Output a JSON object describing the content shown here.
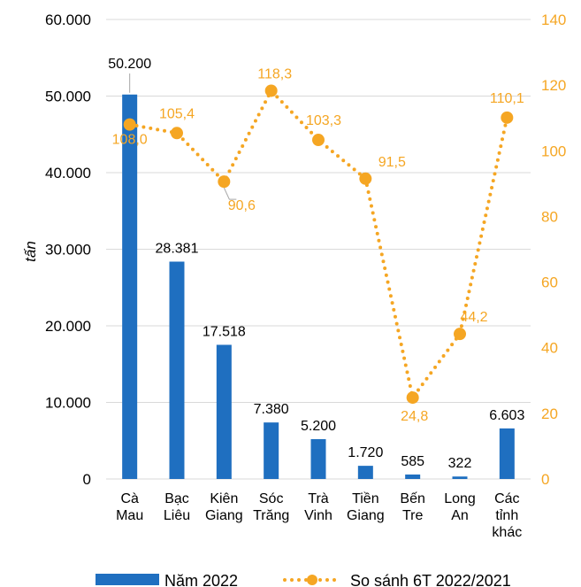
{
  "chart_data": {
    "type": "bar",
    "categories": [
      [
        "Cà",
        "Mau"
      ],
      [
        "Bạc",
        "Liêu"
      ],
      [
        "Kiên",
        "Giang"
      ],
      [
        "Sóc",
        "Trăng"
      ],
      [
        "Trà",
        "Vinh"
      ],
      [
        "Tiền",
        "Giang"
      ],
      [
        "Bến",
        "Tre"
      ],
      [
        "Long",
        "An"
      ],
      [
        "Các",
        "tỉnh",
        "khác"
      ]
    ],
    "series": [
      {
        "name": "Năm 2022",
        "type": "bar",
        "axis": "left",
        "color": "#1F6FC0",
        "values": [
          50200,
          28381,
          17518,
          7380,
          5200,
          1720,
          585,
          322,
          6603
        ],
        "labels": [
          "50.200",
          "28.381",
          "17.518",
          "7.380",
          "5.200",
          "1.720",
          "585",
          "322",
          "6.603"
        ]
      },
      {
        "name": "So sánh 6T 2022/2021",
        "type": "line",
        "style": "dotted",
        "axis": "right",
        "color": "#F5A623",
        "values": [
          108.0,
          105.4,
          90.6,
          118.3,
          103.3,
          91.5,
          24.8,
          44.2,
          110.1
        ],
        "labels": [
          "108,0",
          "105,4",
          "90,6",
          "118,3",
          "103,3",
          "91,5",
          "24,8",
          "44,2",
          "110,1"
        ]
      }
    ],
    "ylabel": "tấn",
    "ylim_left": [
      0,
      60000
    ],
    "yticks_left": [
      "0",
      "10.000",
      "20.000",
      "30.000",
      "40.000",
      "50.000",
      "60.000"
    ],
    "ylim_right": [
      0,
      140
    ],
    "yticks_right": [
      "0",
      "20",
      "40",
      "60",
      "80",
      "100",
      "120",
      "140"
    ],
    "grid": true,
    "legend_position": "bottom"
  }
}
